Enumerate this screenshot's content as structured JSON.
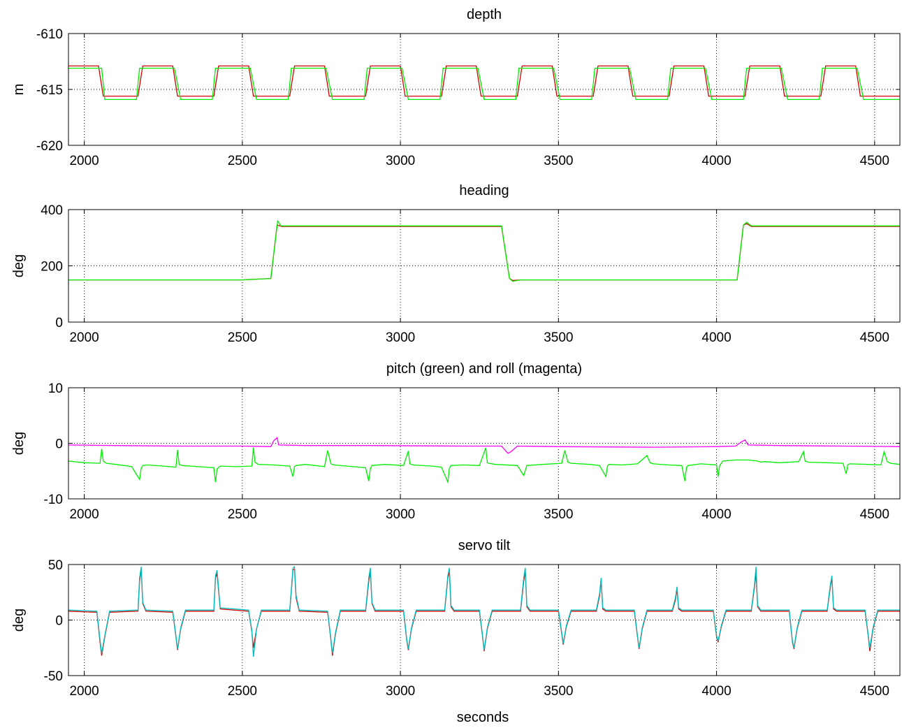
{
  "figure": {
    "xlabel": "seconds"
  },
  "chart_data": [
    {
      "type": "line",
      "title": "depth",
      "ylabel": "m",
      "xlim": [
        1950,
        4580
      ],
      "ylim": [
        -620,
        -610
      ],
      "xticks": [
        2000,
        2500,
        3000,
        3500,
        4000,
        4500
      ],
      "yticks": [
        -620,
        -615,
        -610
      ],
      "grid": true,
      "series": [
        {
          "color": "#d40000",
          "x": [
            1950,
            2005,
            2045,
            2060,
            2170,
            2185,
            2280,
            2295,
            2410,
            2425,
            2520,
            2535,
            2650,
            2665,
            2760,
            2775,
            2890,
            2905,
            3000,
            3015,
            3130,
            3145,
            3240,
            3255,
            3370,
            3385,
            3480,
            3495,
            3610,
            3625,
            3720,
            3735,
            3850,
            3865,
            3960,
            3975,
            4090,
            4105,
            4200,
            4215,
            4330,
            4345,
            4440,
            4455,
            4560,
            4580
          ],
          "values": [
            -612.9,
            -612.9,
            -612.9,
            -615.6,
            -615.6,
            -612.9,
            -612.9,
            -615.6,
            -615.6,
            -612.9,
            -612.9,
            -615.6,
            -615.6,
            -612.9,
            -612.9,
            -615.6,
            -615.6,
            -612.9,
            -612.9,
            -615.6,
            -615.6,
            -612.9,
            -612.9,
            -615.6,
            -615.6,
            -612.9,
            -612.9,
            -615.6,
            -615.6,
            -612.9,
            -612.9,
            -615.6,
            -615.6,
            -612.9,
            -612.9,
            -615.6,
            -615.6,
            -612.9,
            -612.9,
            -615.6,
            -615.6,
            -612.9,
            -612.9,
            -615.6,
            -615.6,
            -615.6
          ]
        },
        {
          "color": "#00ee00",
          "x": [
            1950,
            2005,
            2055,
            2065,
            2165,
            2175,
            2285,
            2305,
            2405,
            2415,
            2525,
            2545,
            2645,
            2655,
            2765,
            2785,
            2885,
            2895,
            3005,
            3025,
            3125,
            3135,
            3245,
            3265,
            3365,
            3375,
            3485,
            3505,
            3605,
            3615,
            3725,
            3745,
            3845,
            3855,
            3965,
            3985,
            4085,
            4095,
            4205,
            4225,
            4325,
            4335,
            4445,
            4465,
            4560,
            4580
          ],
          "values": [
            -613.1,
            -613.1,
            -613.1,
            -615.9,
            -615.9,
            -613.1,
            -613.1,
            -615.9,
            -615.9,
            -613.1,
            -613.1,
            -615.9,
            -615.9,
            -613.1,
            -613.1,
            -615.9,
            -615.9,
            -613.1,
            -613.1,
            -615.9,
            -615.9,
            -613.1,
            -613.1,
            -615.9,
            -615.9,
            -613.1,
            -613.1,
            -615.9,
            -615.9,
            -613.1,
            -613.1,
            -615.9,
            -615.9,
            -613.1,
            -613.1,
            -615.9,
            -615.9,
            -613.1,
            -613.1,
            -615.9,
            -615.9,
            -613.1,
            -613.1,
            -615.9,
            -615.9,
            -615.9
          ]
        }
      ]
    },
    {
      "type": "line",
      "title": "heading",
      "ylabel": "deg",
      "xlim": [
        1950,
        4580
      ],
      "ylim": [
        0,
        400
      ],
      "xticks": [
        2000,
        2500,
        3000,
        3500,
        4000,
        4500
      ],
      "yticks": [
        0,
        200,
        400
      ],
      "grid": true,
      "series": [
        {
          "color": "#d40000",
          "x": [
            1950,
            2500,
            2590,
            2610,
            2625,
            3320,
            3345,
            3355,
            3380,
            4065,
            4085,
            4095,
            4110,
            4580
          ],
          "values": [
            150,
            150,
            155,
            345,
            340,
            340,
            155,
            148,
            150,
            150,
            345,
            350,
            340,
            340
          ]
        },
        {
          "color": "#00ee00",
          "x": [
            1950,
            2500,
            2590,
            2612,
            2622,
            3320,
            3345,
            3355,
            3380,
            4065,
            4085,
            4095,
            4110,
            4580
          ],
          "values": [
            150,
            150,
            155,
            360,
            342,
            342,
            155,
            145,
            150,
            150,
            345,
            355,
            342,
            342
          ]
        }
      ]
    },
    {
      "type": "line",
      "title": "pitch (green) and roll (magenta)",
      "ylabel": "deg",
      "xlim": [
        1950,
        4580
      ],
      "ylim": [
        -10,
        10
      ],
      "xticks": [
        2000,
        2500,
        3000,
        3500,
        4000,
        4500
      ],
      "yticks": [
        -10,
        0,
        10
      ],
      "grid": true,
      "series": [
        {
          "color": "#00ee00",
          "x": [
            1950,
            2000,
            2050,
            2055,
            2060,
            2070,
            2100,
            2150,
            2175,
            2180,
            2185,
            2200,
            2250,
            2290,
            2295,
            2300,
            2310,
            2360,
            2410,
            2415,
            2420,
            2430,
            2480,
            2530,
            2535,
            2540,
            2550,
            2600,
            2650,
            2660,
            2665,
            2670,
            2700,
            2760,
            2770,
            2780,
            2790,
            2850,
            2890,
            2900,
            2905,
            2910,
            2950,
            3010,
            3025,
            3030,
            3040,
            3100,
            3130,
            3150,
            3155,
            3160,
            3200,
            3250,
            3270,
            3275,
            3280,
            3300,
            3370,
            3390,
            3400,
            3450,
            3510,
            3520,
            3530,
            3540,
            3600,
            3630,
            3650,
            3655,
            3660,
            3700,
            3750,
            3780,
            3790,
            3800,
            3850,
            3890,
            3900,
            3905,
            3910,
            3950,
            4000,
            4005,
            4010,
            4020,
            4060,
            4100,
            4130,
            4140,
            4150,
            4200,
            4260,
            4275,
            4280,
            4290,
            4350,
            4400,
            4410,
            4415,
            4420,
            4480,
            4520,
            4530,
            4540,
            4550,
            4580
          ],
          "values": [
            -3.2,
            -3.5,
            -3.6,
            -1.0,
            -3.2,
            -3.6,
            -3.8,
            -4.2,
            -6.5,
            -4.5,
            -4.0,
            -3.9,
            -4.1,
            -4.3,
            -1.2,
            -3.8,
            -4.0,
            -4.2,
            -4.4,
            -7.0,
            -4.6,
            -4.1,
            -4.2,
            -4.1,
            -0.8,
            -3.4,
            -3.8,
            -3.9,
            -4.1,
            -6.0,
            -4.2,
            -4.0,
            -3.8,
            -4.2,
            -1.3,
            -3.7,
            -3.9,
            -4.2,
            -4.4,
            -6.8,
            -4.6,
            -4.0,
            -3.8,
            -4.0,
            -1.4,
            -3.7,
            -3.9,
            -4.1,
            -4.3,
            -7.0,
            -4.5,
            -4.0,
            -3.9,
            -4.0,
            -0.8,
            -3.5,
            -3.6,
            -3.8,
            -4.0,
            -5.8,
            -4.0,
            -3.8,
            -3.6,
            -1.3,
            -3.4,
            -3.6,
            -3.8,
            -4.0,
            -6.0,
            -4.1,
            -3.8,
            -3.9,
            -3.7,
            -2.2,
            -3.5,
            -3.7,
            -3.9,
            -4.0,
            -6.8,
            -4.3,
            -4.0,
            -3.7,
            -3.9,
            -6.0,
            -4.0,
            -3.2,
            -3.0,
            -3.0,
            -3.2,
            -3.4,
            -3.3,
            -3.5,
            -3.3,
            -1.5,
            -3.2,
            -3.4,
            -3.5,
            -3.6,
            -5.5,
            -3.9,
            -3.7,
            -3.8,
            -3.9,
            -1.5,
            -3.3,
            -3.6,
            -3.8
          ]
        },
        {
          "color": "#ff00ff",
          "x": [
            1950,
            2100,
            2300,
            2500,
            2590,
            2600,
            2610,
            2615,
            2700,
            2900,
            3200,
            3320,
            3340,
            3350,
            3370,
            3500,
            3800,
            4000,
            4060,
            4080,
            4090,
            4100,
            4200,
            4400,
            4580
          ],
          "values": [
            -0.3,
            -0.4,
            -0.5,
            -0.5,
            -0.6,
            0.5,
            1.0,
            -0.3,
            -0.4,
            -0.4,
            -0.5,
            -0.5,
            -1.8,
            -1.5,
            -0.5,
            -0.6,
            -0.7,
            -0.6,
            -0.5,
            0.3,
            0.6,
            -0.3,
            -0.4,
            -0.5,
            -0.6
          ]
        }
      ]
    },
    {
      "type": "line",
      "title": "servo tilt",
      "ylabel": "deg",
      "xlim": [
        1950,
        4580
      ],
      "ylim": [
        -50,
        50
      ],
      "xticks": [
        2000,
        2500,
        3000,
        3500,
        4000,
        4500
      ],
      "yticks": [
        -50,
        0,
        50
      ],
      "grid": true,
      "series": [
        {
          "color": "#d40000",
          "x": [
            1950,
            2040,
            2050,
            2055,
            2065,
            2080,
            2170,
            2175,
            2180,
            2185,
            2195,
            2280,
            2290,
            2295,
            2305,
            2320,
            2410,
            2415,
            2420,
            2430,
            2520,
            2530,
            2535,
            2545,
            2560,
            2650,
            2660,
            2665,
            2670,
            2680,
            2770,
            2780,
            2785,
            2795,
            2810,
            2890,
            2900,
            2905,
            2910,
            2920,
            3010,
            3020,
            3025,
            3035,
            3050,
            3140,
            3150,
            3155,
            3160,
            3170,
            3250,
            3260,
            3265,
            3275,
            3290,
            3380,
            3390,
            3395,
            3400,
            3410,
            3500,
            3510,
            3515,
            3525,
            3540,
            3620,
            3630,
            3635,
            3640,
            3650,
            3740,
            3750,
            3755,
            3765,
            3780,
            3860,
            3870,
            3875,
            3880,
            3890,
            3990,
            4000,
            4005,
            4015,
            4030,
            4110,
            4120,
            4125,
            4130,
            4140,
            4230,
            4240,
            4245,
            4255,
            4270,
            4350,
            4360,
            4365,
            4370,
            4380,
            4470,
            4480,
            4485,
            4495,
            4510,
            4580
          ],
          "values": [
            8,
            7,
            -20,
            -32,
            -15,
            7,
            8,
            35,
            46,
            15,
            8,
            7,
            -15,
            -27,
            -8,
            8,
            8,
            38,
            42,
            10,
            8,
            -10,
            -25,
            -8,
            8,
            8,
            45,
            46,
            20,
            8,
            7,
            -18,
            -32,
            -12,
            8,
            8,
            35,
            44,
            15,
            8,
            8,
            -18,
            -27,
            -8,
            8,
            8,
            38,
            44,
            12,
            8,
            8,
            -15,
            -28,
            -8,
            8,
            8,
            35,
            44,
            12,
            8,
            8,
            -12,
            -22,
            -6,
            8,
            8,
            22,
            36,
            10,
            8,
            8,
            -15,
            -26,
            -8,
            8,
            8,
            18,
            28,
            10,
            8,
            8,
            -15,
            -20,
            -6,
            8,
            8,
            30,
            42,
            12,
            8,
            8,
            -20,
            -26,
            -8,
            8,
            8,
            30,
            38,
            10,
            8,
            8,
            -15,
            -28,
            -8,
            8,
            8
          ]
        },
        {
          "color": "#00bfbf",
          "x": [
            1950,
            2040,
            2050,
            2055,
            2065,
            2080,
            2170,
            2175,
            2180,
            2185,
            2195,
            2280,
            2290,
            2295,
            2305,
            2320,
            2410,
            2415,
            2420,
            2430,
            2520,
            2530,
            2535,
            2545,
            2560,
            2650,
            2660,
            2665,
            2670,
            2680,
            2770,
            2780,
            2785,
            2795,
            2810,
            2890,
            2900,
            2905,
            2910,
            2920,
            3010,
            3020,
            3025,
            3035,
            3050,
            3140,
            3150,
            3155,
            3160,
            3170,
            3250,
            3260,
            3265,
            3275,
            3290,
            3380,
            3390,
            3395,
            3400,
            3410,
            3500,
            3510,
            3515,
            3525,
            3540,
            3620,
            3630,
            3635,
            3640,
            3650,
            3740,
            3750,
            3755,
            3765,
            3780,
            3860,
            3870,
            3875,
            3880,
            3890,
            3990,
            4000,
            4005,
            4015,
            4030,
            4110,
            4120,
            4125,
            4130,
            4140,
            4230,
            4240,
            4245,
            4255,
            4270,
            4350,
            4360,
            4365,
            4370,
            4380,
            4470,
            4480,
            4485,
            4495,
            4510,
            4580
          ],
          "values": [
            9,
            8,
            -18,
            -30,
            -14,
            8,
            9,
            38,
            48,
            16,
            9,
            8,
            -14,
            -26,
            -7,
            9,
            9,
            40,
            45,
            11,
            9,
            -9,
            -33,
            -8,
            9,
            9,
            47,
            48,
            22,
            9,
            8,
            -17,
            -30,
            -11,
            9,
            9,
            38,
            47,
            16,
            9,
            9,
            -17,
            -26,
            -7,
            9,
            9,
            40,
            47,
            13,
            9,
            9,
            -14,
            -27,
            -7,
            9,
            9,
            38,
            47,
            13,
            9,
            9,
            -11,
            -21,
            -5,
            9,
            9,
            24,
            38,
            11,
            9,
            9,
            -14,
            -25,
            -7,
            9,
            9,
            20,
            30,
            11,
            9,
            9,
            -14,
            -19,
            -5,
            9,
            9,
            32,
            48,
            13,
            9,
            9,
            -19,
            -25,
            -7,
            9,
            9,
            32,
            40,
            11,
            9,
            9,
            -14,
            -25,
            -7,
            9,
            9
          ]
        }
      ]
    }
  ]
}
